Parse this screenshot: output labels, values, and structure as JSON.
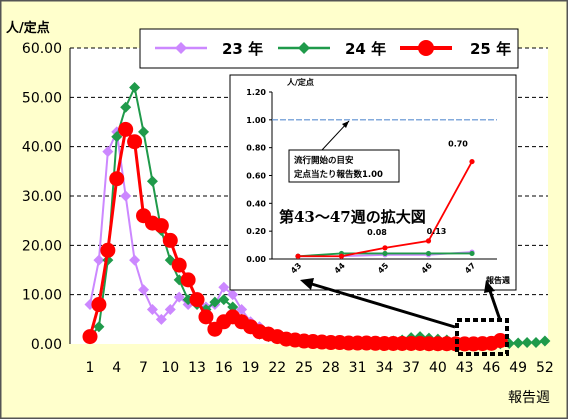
{
  "chart_data": [
    {
      "type": "line",
      "ylabel": "人/定点",
      "xlabel": "報告週",
      "ylim": [
        0,
        60
      ],
      "yticks": [
        "0.00",
        "10.00",
        "20.00",
        "30.00",
        "40.00",
        "50.00",
        "60.00"
      ],
      "xticks": [
        "1",
        "4",
        "7",
        "10",
        "13",
        "16",
        "19",
        "22",
        "25",
        "28",
        "31",
        "34",
        "37",
        "40",
        "43",
        "46",
        "49",
        "52"
      ],
      "grid": "dashed-horizontal",
      "legend": "top",
      "series": [
        {
          "name": "23 年",
          "color": "#cc88ff",
          "marker": "diamond",
          "x": [
            1,
            2,
            3,
            4,
            5,
            6,
            7,
            8,
            9,
            10,
            11,
            12,
            13,
            14,
            15,
            16,
            17,
            18,
            19,
            20,
            21,
            22,
            23,
            24,
            25,
            26,
            27,
            28,
            29,
            30,
            31,
            32,
            33,
            34,
            35,
            36,
            37,
            38,
            39,
            40,
            41,
            42,
            43,
            44,
            45,
            46,
            47
          ],
          "values": [
            8,
            17,
            39,
            43,
            30,
            17,
            11,
            7,
            5,
            7,
            9.5,
            8,
            9.5,
            7.5,
            8,
            11.5,
            10,
            7,
            4.5,
            3.5,
            2.5,
            1.8,
            1.2,
            0.8,
            0.5,
            0.4,
            0.3,
            0.25,
            0.2,
            0.2,
            0.15,
            0.1,
            0.1,
            0.1,
            0.1,
            0.1,
            0.1,
            0.1,
            0.05,
            0.05,
            0.05,
            0.05,
            0.02,
            0.02,
            0.03,
            0.03,
            0.05
          ]
        },
        {
          "name": "24 年",
          "color": "#1f9a4a",
          "marker": "diamond",
          "x": [
            1,
            2,
            3,
            4,
            5,
            6,
            7,
            8,
            9,
            10,
            11,
            12,
            13,
            14,
            15,
            16,
            17,
            18,
            19,
            20,
            21,
            22,
            23,
            24,
            25,
            26,
            27,
            28,
            29,
            30,
            31,
            32,
            33,
            34,
            35,
            36,
            37,
            38,
            39,
            40,
            41,
            42,
            43,
            44,
            45,
            46,
            47,
            48,
            49,
            50,
            51,
            52
          ],
          "values": [
            1.5,
            3.5,
            17,
            42,
            48,
            52,
            43,
            33,
            23,
            17,
            13,
            9,
            8,
            7,
            8.5,
            9,
            7.5,
            5,
            3.5,
            2,
            1.5,
            1.2,
            0.8,
            0.5,
            0.4,
            0.3,
            0.3,
            0.2,
            0.2,
            0.2,
            0.3,
            0.3,
            0.4,
            0.5,
            0.6,
            0.8,
            1.3,
            1.5,
            1.2,
            1,
            0.8,
            0.5,
            0.02,
            0.04,
            0.04,
            0.04,
            0.04,
            0.1,
            0.2,
            0.3,
            0.3,
            0.6
          ]
        },
        {
          "name": "25 年",
          "color": "#ff0000",
          "marker": "circle",
          "x": [
            1,
            2,
            3,
            4,
            5,
            6,
            7,
            8,
            9,
            10,
            11,
            12,
            13,
            14,
            15,
            16,
            17,
            18,
            19,
            20,
            21,
            22,
            23,
            24,
            25,
            26,
            27,
            28,
            29,
            30,
            31,
            32,
            33,
            34,
            35,
            36,
            37,
            38,
            39,
            40,
            41,
            42,
            43,
            44,
            45,
            46,
            47
          ],
          "values": [
            1.5,
            8,
            19,
            33.5,
            43.5,
            41,
            26,
            24.5,
            24,
            21,
            16,
            13,
            9,
            5.5,
            3,
            4.5,
            5.5,
            4.5,
            3.5,
            2.5,
            2,
            1.5,
            1,
            0.8,
            0.6,
            0.5,
            0.4,
            0.3,
            0.3,
            0.2,
            0.2,
            0.2,
            0.15,
            0.1,
            0.1,
            0.1,
            0.1,
            0.1,
            0.05,
            0.05,
            0.05,
            0.03,
            0.02,
            0.02,
            0.08,
            0.13,
            0.7
          ]
        }
      ]
    },
    {
      "type": "line",
      "ylabel": "人/定点",
      "xlabel": "報告週",
      "title": "第43〜47週の拡大図",
      "ylim": [
        0,
        1.2
      ],
      "yticks": [
        "0.00",
        "0.20",
        "0.40",
        "0.60",
        "0.80",
        "1.00",
        "1.20"
      ],
      "x": [
        43,
        44,
        45,
        46,
        47
      ],
      "series": [
        {
          "name": "23 年",
          "color": "#cc88ff",
          "values": [
            0.02,
            0.02,
            0.03,
            0.03,
            0.05
          ]
        },
        {
          "name": "24 年",
          "color": "#1f9a4a",
          "values": [
            0.02,
            0.04,
            0.04,
            0.04,
            0.04
          ]
        },
        {
          "name": "25 年",
          "color": "#ff0000",
          "values": [
            0.02,
            0.02,
            0.08,
            0.13,
            0.7
          ]
        }
      ],
      "data_labels": [
        "0.08",
        "0.13",
        "0.70"
      ],
      "reference_line": 1.0,
      "annotation": [
        "流行開始の目安",
        "定点当たり報告数1.00"
      ]
    }
  ]
}
